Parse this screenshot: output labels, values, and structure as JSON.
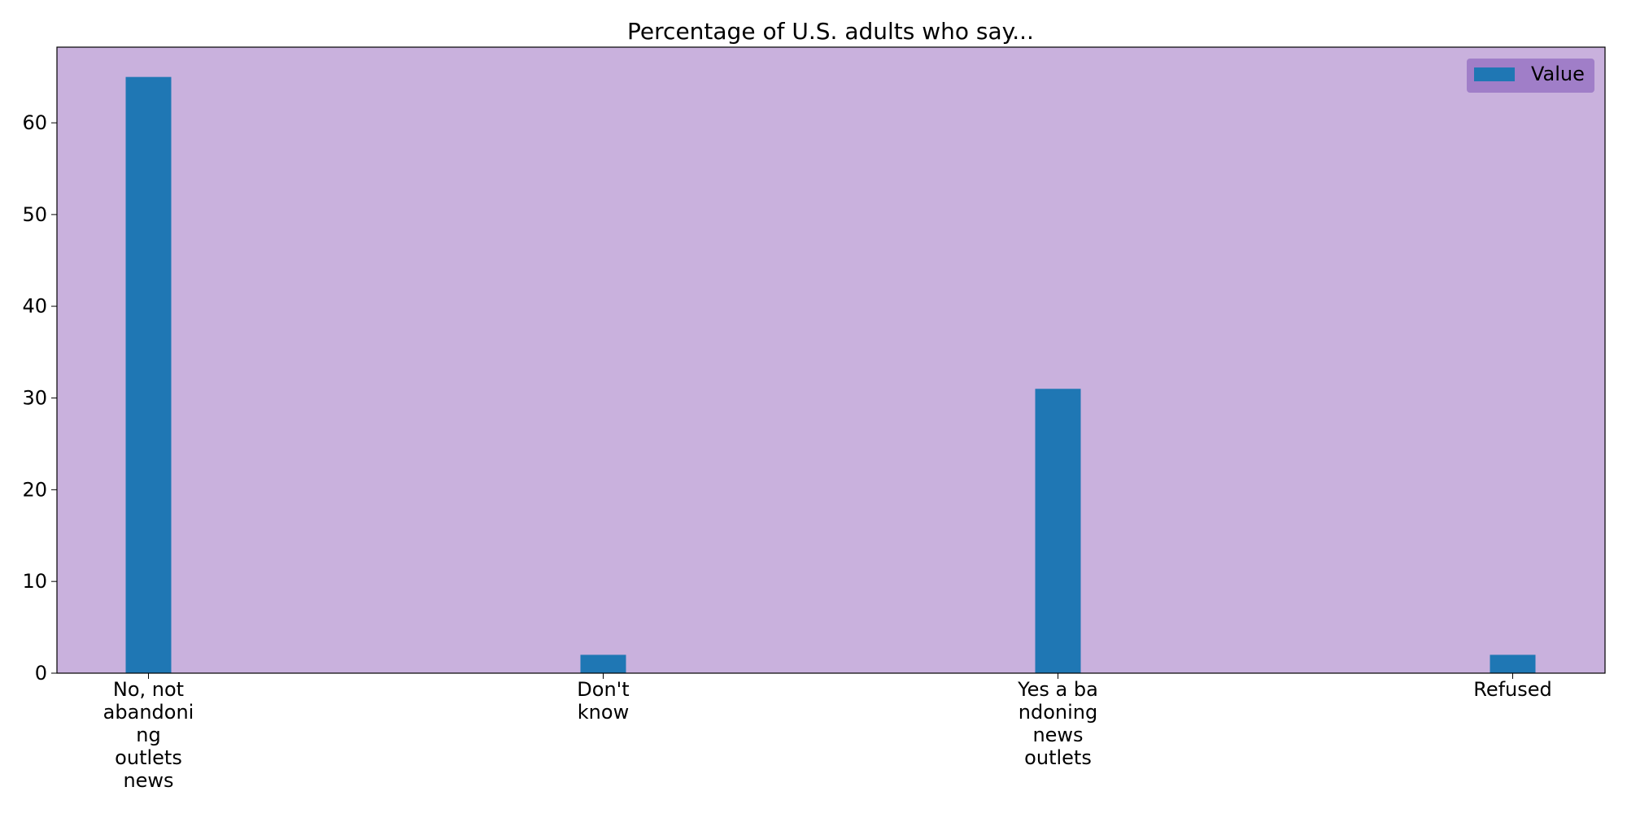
{
  "chart_data": {
    "type": "bar",
    "title": "Percentage of U.S. adults who say...",
    "categories": [
      [
        "No, not",
        "abandoni",
        "ng",
        "outlets",
        "news"
      ],
      [
        "Don't",
        "know"
      ],
      [
        "Yes a ba",
        "ndoning",
        "news",
        "outlets"
      ],
      [
        "Refused"
      ]
    ],
    "series": [
      {
        "name": "Value",
        "values": [
          65,
          2,
          31,
          2
        ]
      }
    ],
    "ylim": [
      0,
      68.25
    ],
    "yticks": [
      0,
      10,
      20,
      30,
      40,
      50,
      60
    ],
    "xlabel": "",
    "ylabel": "",
    "legend_position": "top-right",
    "grid": false,
    "colors": {
      "bar": "#1f77b4",
      "plot_background": "#c9b1dd",
      "legend_background": "#a07ec8",
      "axes_edge": "#000000"
    }
  }
}
